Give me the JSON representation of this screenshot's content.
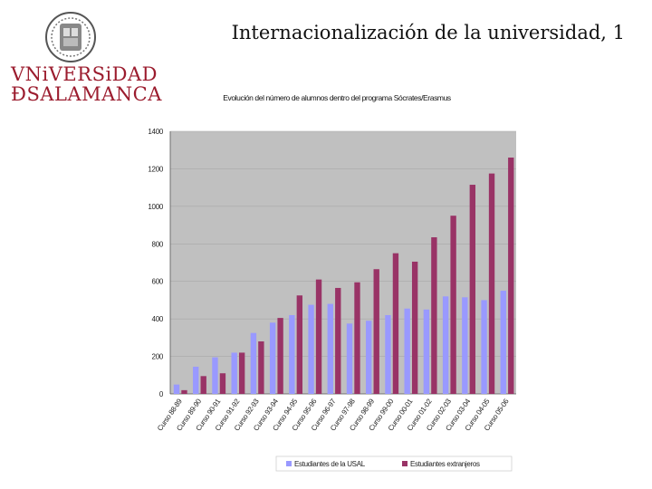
{
  "slide": {
    "title": "Internacionalización de la universidad, 1"
  },
  "logo": {
    "line1": "VNiVERSiDAD",
    "line2": "ÐSALAMANCA"
  },
  "colors": {
    "series1": "#9999ff",
    "series2": "#993366",
    "plot_bg": "#c0c0c0",
    "logo": "#9b1c2e"
  },
  "chart_data": {
    "type": "bar",
    "title": "Evolución del número de alumnos dentro del programa Sócrates/Erasmus",
    "categories": [
      "Curso 88-89",
      "Curso 89-90",
      "Curso 90-91",
      "Curso 91-92",
      "Curso 92-93",
      "Curso 93-94",
      "Curso 94-95",
      "Curso 95-96",
      "Curso 96-97",
      "Curso 97-98",
      "Curso 98-99",
      "Curso 99-00",
      "Curso 00-01",
      "Curso 01-02",
      "Curso 02-03",
      "Curso 03-04",
      "Curso 04-05",
      "Curso 05-06"
    ],
    "series": [
      {
        "name": "Estudiantes de la USAL",
        "values": [
          50,
          145,
          195,
          220,
          325,
          380,
          420,
          475,
          480,
          375,
          390,
          420,
          455,
          450,
          520,
          515,
          500,
          550
        ]
      },
      {
        "name": "Estudiantes extranjeros",
        "values": [
          20,
          95,
          110,
          220,
          280,
          405,
          525,
          610,
          565,
          595,
          665,
          750,
          705,
          835,
          950,
          1115,
          1175,
          1260
        ]
      }
    ],
    "yticks": [
      "0",
      "200",
      "400",
      "600",
      "800",
      "1000",
      "1200",
      "1400"
    ],
    "ylim": [
      0,
      1400
    ],
    "xlabel": "",
    "ylabel": "",
    "grid": true,
    "legend_position": "bottom"
  }
}
